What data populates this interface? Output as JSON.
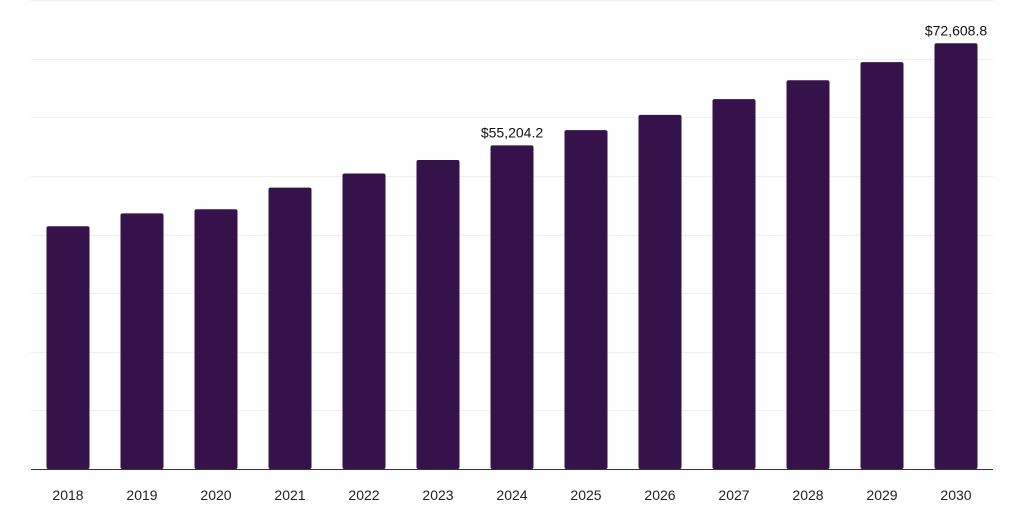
{
  "chart_data": {
    "type": "bar",
    "categories": [
      "2018",
      "2019",
      "2020",
      "2021",
      "2022",
      "2023",
      "2024",
      "2025",
      "2026",
      "2027",
      "2028",
      "2029",
      "2030"
    ],
    "values": [
      41400,
      43600,
      44300,
      48000,
      50400,
      52700,
      55204.2,
      57800,
      60400,
      63100,
      66300,
      69400,
      72608.8
    ],
    "data_labels": [
      {
        "category": "2024",
        "text": "$55,204.2"
      },
      {
        "category": "2030",
        "text": "$72,608.8"
      }
    ],
    "title": "",
    "xlabel": "",
    "ylabel": "",
    "ylim": [
      0,
      80000
    ],
    "grid": true,
    "bar_color": "#36124a",
    "grid_color": "#eeeeee",
    "axis_color": "#333333"
  }
}
